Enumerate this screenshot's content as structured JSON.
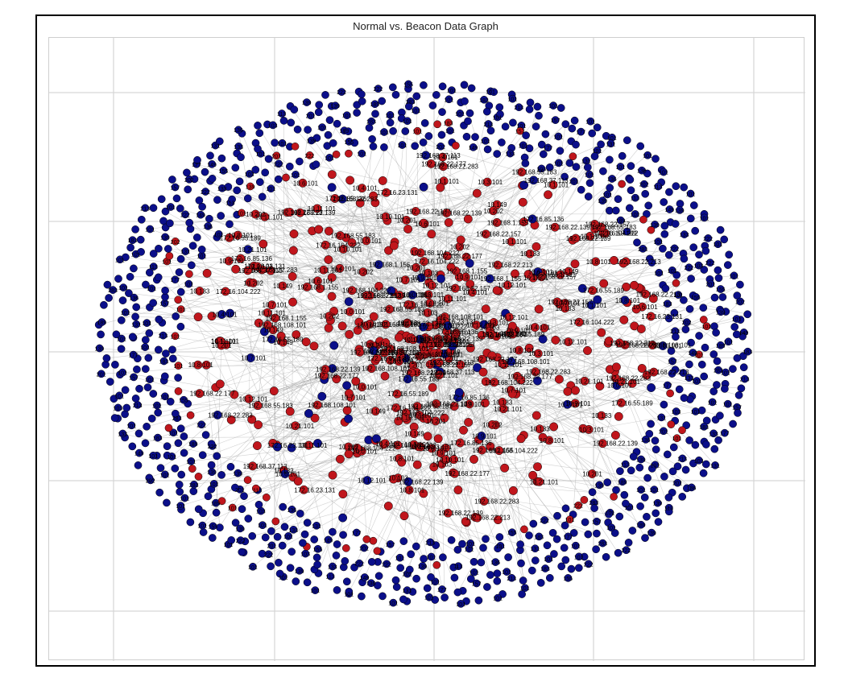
{
  "figure": {
    "title": "Normal vs. Beacon Data Graph"
  },
  "colors": {
    "normal_node": "#c0161c",
    "beacon_node": "#0b0f8a",
    "edge": "#9a9a9a",
    "grid": "#d6d6d6",
    "label": "#000000"
  },
  "graph": {
    "layout": "spring",
    "grid": true,
    "node_classes": [
      "normal",
      "beacon"
    ],
    "sample_node_labels": [
      "192.168.55.183",
      "192.168.22.213",
      "192.168.22.157",
      "192.168.22.177",
      "172.16.23.131",
      "172.16.85.136",
      "192.168.37.113",
      "192.168.22.139",
      "192.168.104.222",
      "172.16.104.222",
      "192.168.1.155",
      "10.4.101",
      "10.1.101",
      "10.3.101",
      "10.7.101",
      "10.9.101",
      "10.8.101",
      "10.6.101",
      "10.0.101",
      "10.10.101",
      "10.12.101",
      "10.11.101",
      "10.21.101",
      "10.202",
      "10.149",
      "10.133",
      "10.103",
      "10.201",
      "192.168.22.139",
      "172.16.55.189",
      "192.168.22.283",
      "192.168.108.101"
    ]
  }
}
